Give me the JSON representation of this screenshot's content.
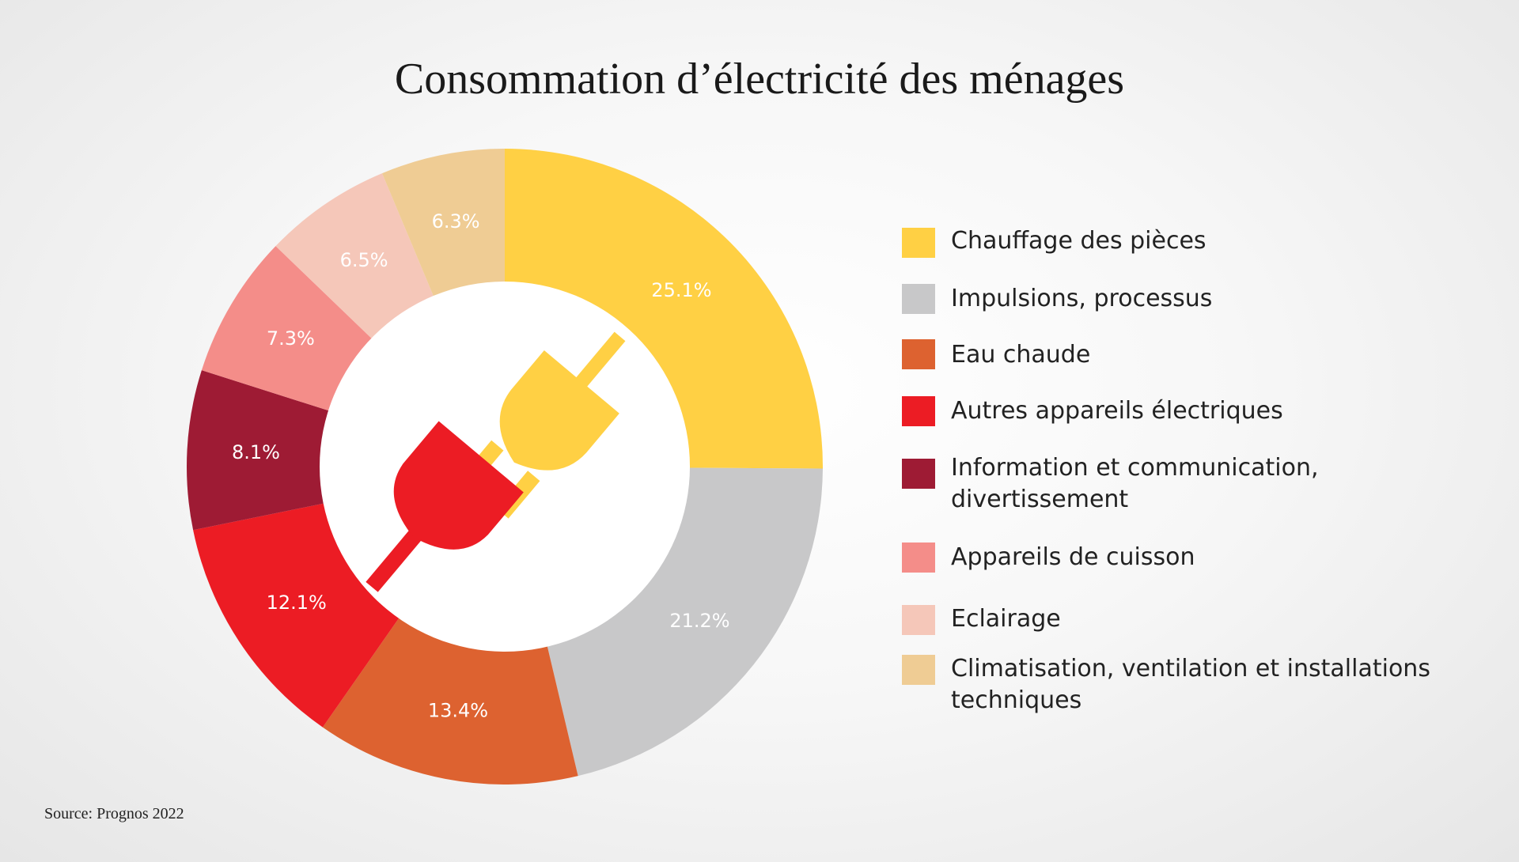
{
  "title": "Consommation d’électricité des ménages",
  "source": "Source: Prognos 2022",
  "colors": {
    "yellow": "#FFD044",
    "gray": "#C8C8C9",
    "orange": "#DD6230",
    "red": "#EC1C24",
    "darkred": "#9E1B34",
    "pink": "#F48D89",
    "lightpink": "#F5C7B9",
    "beige": "#EFCC94"
  },
  "icon": "plug-and-socket-icon",
  "chart_data": {
    "type": "pie",
    "variant": "donut",
    "title": "Consommation d’électricité des ménages",
    "values": [
      25.1,
      21.2,
      13.4,
      12.1,
      8.1,
      7.3,
      6.5,
      6.3
    ],
    "value_labels": [
      "25.1%",
      "21.2%",
      "13.4%",
      "12.1%",
      "8.1%",
      "7.3%",
      "6.5%",
      "6.3%"
    ],
    "categories": [
      "Chauffage des pièces",
      "Impulsions, processus",
      "Eau chaude",
      "Autres appareils électriques",
      "Information et communication, divertissement",
      "Appareils de cuisson",
      "Eclairage",
      "Climatisation, ventilation et installations techniques"
    ],
    "slice_colors": [
      "#FFD044",
      "#C8C8C9",
      "#DD6230",
      "#EC1C24",
      "#9E1B34",
      "#F48D89",
      "#F5C7B9",
      "#EFCC94"
    ],
    "legend_position": "right",
    "start": "top, clockwise"
  },
  "legend": [
    {
      "label": "Chauffage des pièces",
      "color": "#FFD044"
    },
    {
      "label": "Impulsions, processus",
      "color": "#C8C8C9"
    },
    {
      "label": "Eau chaude",
      "color": "#DD6230"
    },
    {
      "label": "Autres appareils électriques",
      "color": "#EC1C24"
    },
    {
      "label": "Information et communication, divertissement",
      "color": "#9E1B34"
    },
    {
      "label": "Appareils de cuisson",
      "color": "#F48D89"
    },
    {
      "label": "Eclairage",
      "color": "#F5C7B9"
    },
    {
      "label": "Climatisation, ventilation et installations techniques",
      "color": "#EFCC94"
    }
  ]
}
